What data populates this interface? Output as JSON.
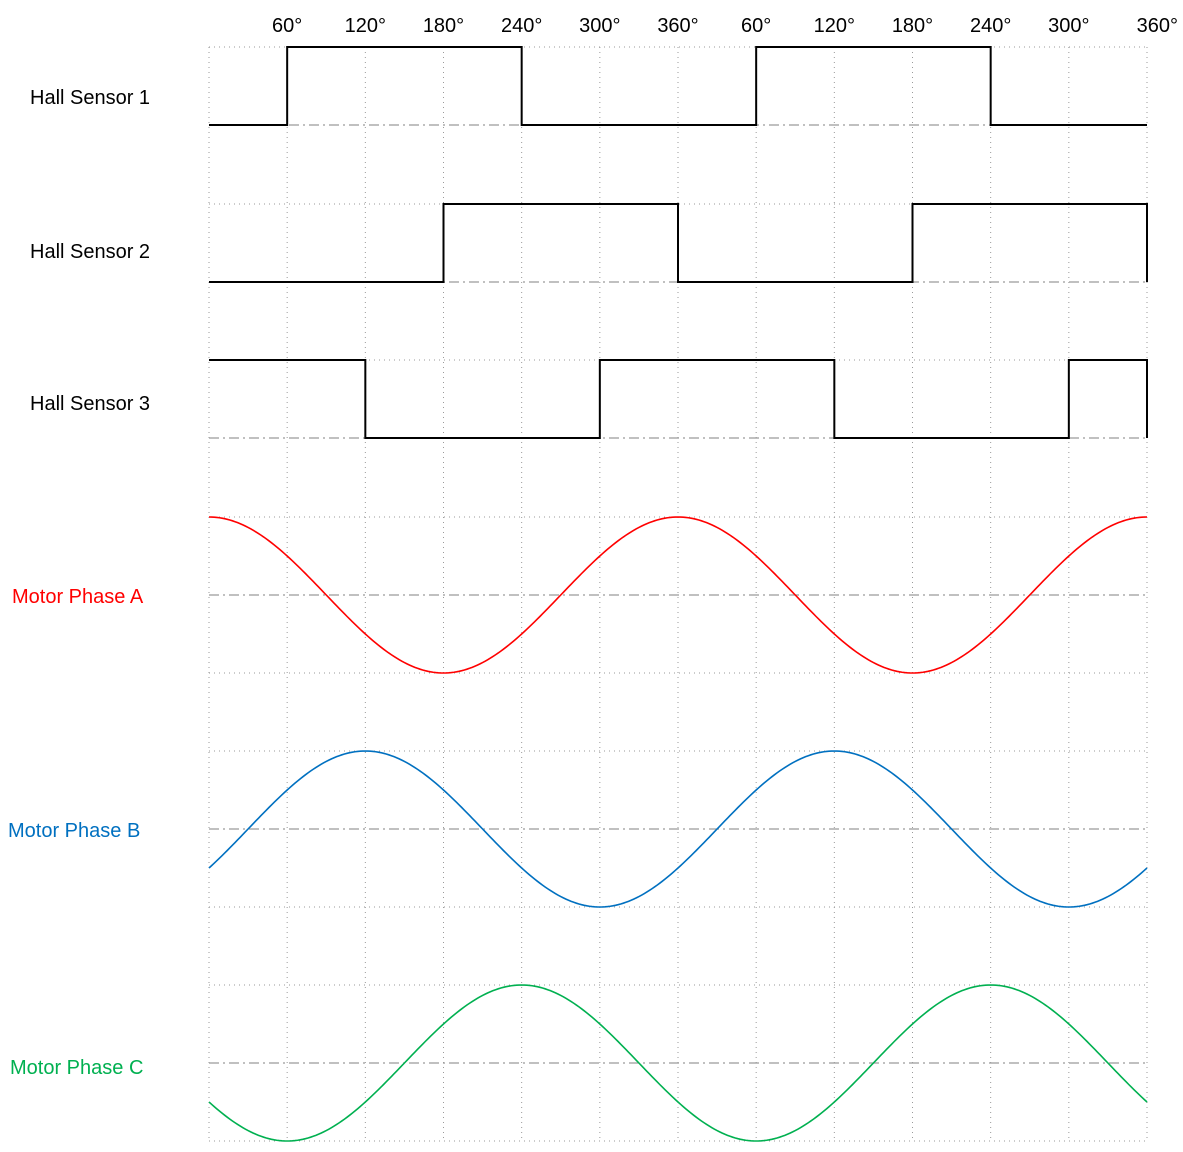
{
  "x_ticks": [
    "60°",
    "120°",
    "180°",
    "240°",
    "300°",
    "360°",
    "60°",
    "120°",
    "180°",
    "240°",
    "300°",
    "360°"
  ],
  "colors": {
    "grid": "#9a9a9a",
    "baseline": "#9a9a9a",
    "hall": "#000000",
    "phase_a": "#ff0000",
    "phase_b": "#0070c0",
    "phase_c": "#00b050"
  },
  "hall_sensors": [
    {
      "label": "Hall Sensor 1",
      "high_intervals_deg": [
        [
          60,
          240
        ],
        [
          420,
          600
        ]
      ]
    },
    {
      "label": "Hall Sensor 2",
      "high_intervals_deg": [
        [
          180,
          360
        ],
        [
          540,
          720
        ]
      ]
    },
    {
      "label": "Hall Sensor 3",
      "high_intervals_deg": [
        [
          0,
          120
        ],
        [
          300,
          480
        ],
        [
          660,
          720
        ]
      ]
    }
  ],
  "motor_phases": [
    {
      "label": "Motor Phase A",
      "peak_deg": 0,
      "color_key": "phase_a"
    },
    {
      "label": "Motor Phase B",
      "peak_deg": 120,
      "color_key": "phase_b"
    },
    {
      "label": "Motor Phase C",
      "peak_deg": 240,
      "color_key": "phase_c"
    }
  ],
  "x_range_deg": [
    0,
    720
  ]
}
